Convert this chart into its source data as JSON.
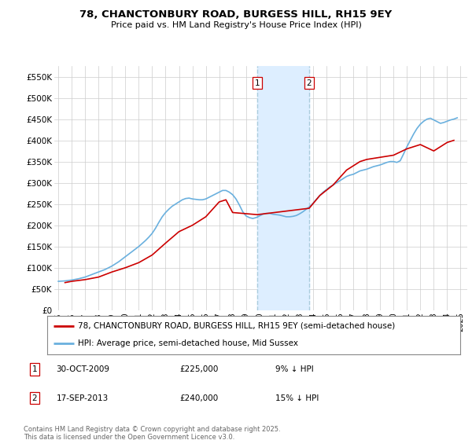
{
  "title": "78, CHANCTONBURY ROAD, BURGESS HILL, RH15 9EY",
  "subtitle": "Price paid vs. HM Land Registry's House Price Index (HPI)",
  "hpi_color": "#6ab0de",
  "price_color": "#cc0000",
  "marker_bg": "#ddeeff",
  "marker_line": "#aaccdd",
  "ylim": [
    0,
    575000
  ],
  "yticks": [
    0,
    50000,
    100000,
    150000,
    200000,
    250000,
    300000,
    350000,
    400000,
    450000,
    500000,
    550000
  ],
  "ytick_labels": [
    "£0",
    "£50K",
    "£100K",
    "£150K",
    "£200K",
    "£250K",
    "£300K",
    "£350K",
    "£400K",
    "£450K",
    "£500K",
    "£550K"
  ],
  "legend_property_label": "78, CHANCTONBURY ROAD, BURGESS HILL, RH15 9EY (semi-detached house)",
  "legend_hpi_label": "HPI: Average price, semi-detached house, Mid Sussex",
  "purchase1_date": "30-OCT-2009",
  "purchase1_price": "£225,000",
  "purchase1_hpi": "9% ↓ HPI",
  "purchase1_year": 2009.83,
  "purchase2_date": "17-SEP-2013",
  "purchase2_price": "£240,000",
  "purchase2_hpi": "15% ↓ HPI",
  "purchase2_year": 2013.71,
  "footer": "Contains HM Land Registry data © Crown copyright and database right 2025.\nThis data is licensed under the Open Government Licence v3.0.",
  "hpi_x": [
    1995.0,
    1995.25,
    1995.5,
    1995.75,
    1996.0,
    1996.25,
    1996.5,
    1996.75,
    1997.0,
    1997.25,
    1997.5,
    1997.75,
    1998.0,
    1998.25,
    1998.5,
    1998.75,
    1999.0,
    1999.25,
    1999.5,
    1999.75,
    2000.0,
    2000.25,
    2000.5,
    2000.75,
    2001.0,
    2001.25,
    2001.5,
    2001.75,
    2002.0,
    2002.25,
    2002.5,
    2002.75,
    2003.0,
    2003.25,
    2003.5,
    2003.75,
    2004.0,
    2004.25,
    2004.5,
    2004.75,
    2005.0,
    2005.25,
    2005.5,
    2005.75,
    2006.0,
    2006.25,
    2006.5,
    2006.75,
    2007.0,
    2007.25,
    2007.5,
    2007.75,
    2008.0,
    2008.25,
    2008.5,
    2008.75,
    2009.0,
    2009.25,
    2009.5,
    2009.75,
    2010.0,
    2010.25,
    2010.5,
    2010.75,
    2011.0,
    2011.25,
    2011.5,
    2011.75,
    2012.0,
    2012.25,
    2012.5,
    2012.75,
    2013.0,
    2013.25,
    2013.5,
    2013.75,
    2014.0,
    2014.25,
    2014.5,
    2014.75,
    2015.0,
    2015.25,
    2015.5,
    2015.75,
    2016.0,
    2016.25,
    2016.5,
    2016.75,
    2017.0,
    2017.25,
    2017.5,
    2017.75,
    2018.0,
    2018.25,
    2018.5,
    2018.75,
    2019.0,
    2019.25,
    2019.5,
    2019.75,
    2020.0,
    2020.25,
    2020.5,
    2020.75,
    2021.0,
    2021.25,
    2021.5,
    2021.75,
    2022.0,
    2022.25,
    2022.5,
    2022.75,
    2023.0,
    2023.25,
    2023.5,
    2023.75,
    2024.0,
    2024.25,
    2024.5,
    2024.75
  ],
  "hpi_y": [
    68000,
    68500,
    69000,
    70000,
    71000,
    72500,
    74000,
    76000,
    78000,
    81000,
    84000,
    87000,
    90000,
    93000,
    96000,
    100000,
    104000,
    109000,
    114000,
    120000,
    126000,
    132000,
    138000,
    144000,
    150000,
    157000,
    164000,
    172000,
    181000,
    193000,
    207000,
    220000,
    230000,
    238000,
    245000,
    250000,
    255000,
    260000,
    263000,
    264000,
    262000,
    261000,
    260000,
    260000,
    262000,
    266000,
    270000,
    274000,
    278000,
    282000,
    282000,
    278000,
    272000,
    262000,
    248000,
    232000,
    222000,
    218000,
    216000,
    218000,
    222000,
    226000,
    228000,
    228000,
    226000,
    225000,
    224000,
    222000,
    220000,
    220000,
    221000,
    223000,
    227000,
    232000,
    238000,
    244000,
    252000,
    261000,
    270000,
    278000,
    284000,
    290000,
    295000,
    300000,
    305000,
    310000,
    315000,
    318000,
    320000,
    324000,
    328000,
    330000,
    332000,
    335000,
    338000,
    340000,
    342000,
    345000,
    348000,
    350000,
    350000,
    348000,
    352000,
    368000,
    385000,
    400000,
    415000,
    428000,
    438000,
    445000,
    450000,
    452000,
    448000,
    444000,
    440000,
    442000,
    445000,
    448000,
    450000,
    453000
  ],
  "price_x": [
    1995.5,
    1996.0,
    1997.0,
    1998.0,
    1999.0,
    2000.0,
    2001.0,
    2002.0,
    2003.0,
    2004.0,
    2005.0,
    2006.0,
    2007.0,
    2007.5,
    2008.0,
    2009.83,
    2013.71,
    2014.5,
    2015.5,
    2016.5,
    2017.5,
    2018.0,
    2019.0,
    2020.0,
    2021.0,
    2022.0,
    2023.0,
    2024.0,
    2024.5
  ],
  "price_y": [
    65000,
    68000,
    72000,
    78000,
    90000,
    100000,
    112000,
    130000,
    158000,
    185000,
    200000,
    220000,
    255000,
    260000,
    230000,
    225000,
    240000,
    270000,
    295000,
    330000,
    350000,
    355000,
    360000,
    365000,
    380000,
    390000,
    375000,
    395000,
    400000
  ]
}
